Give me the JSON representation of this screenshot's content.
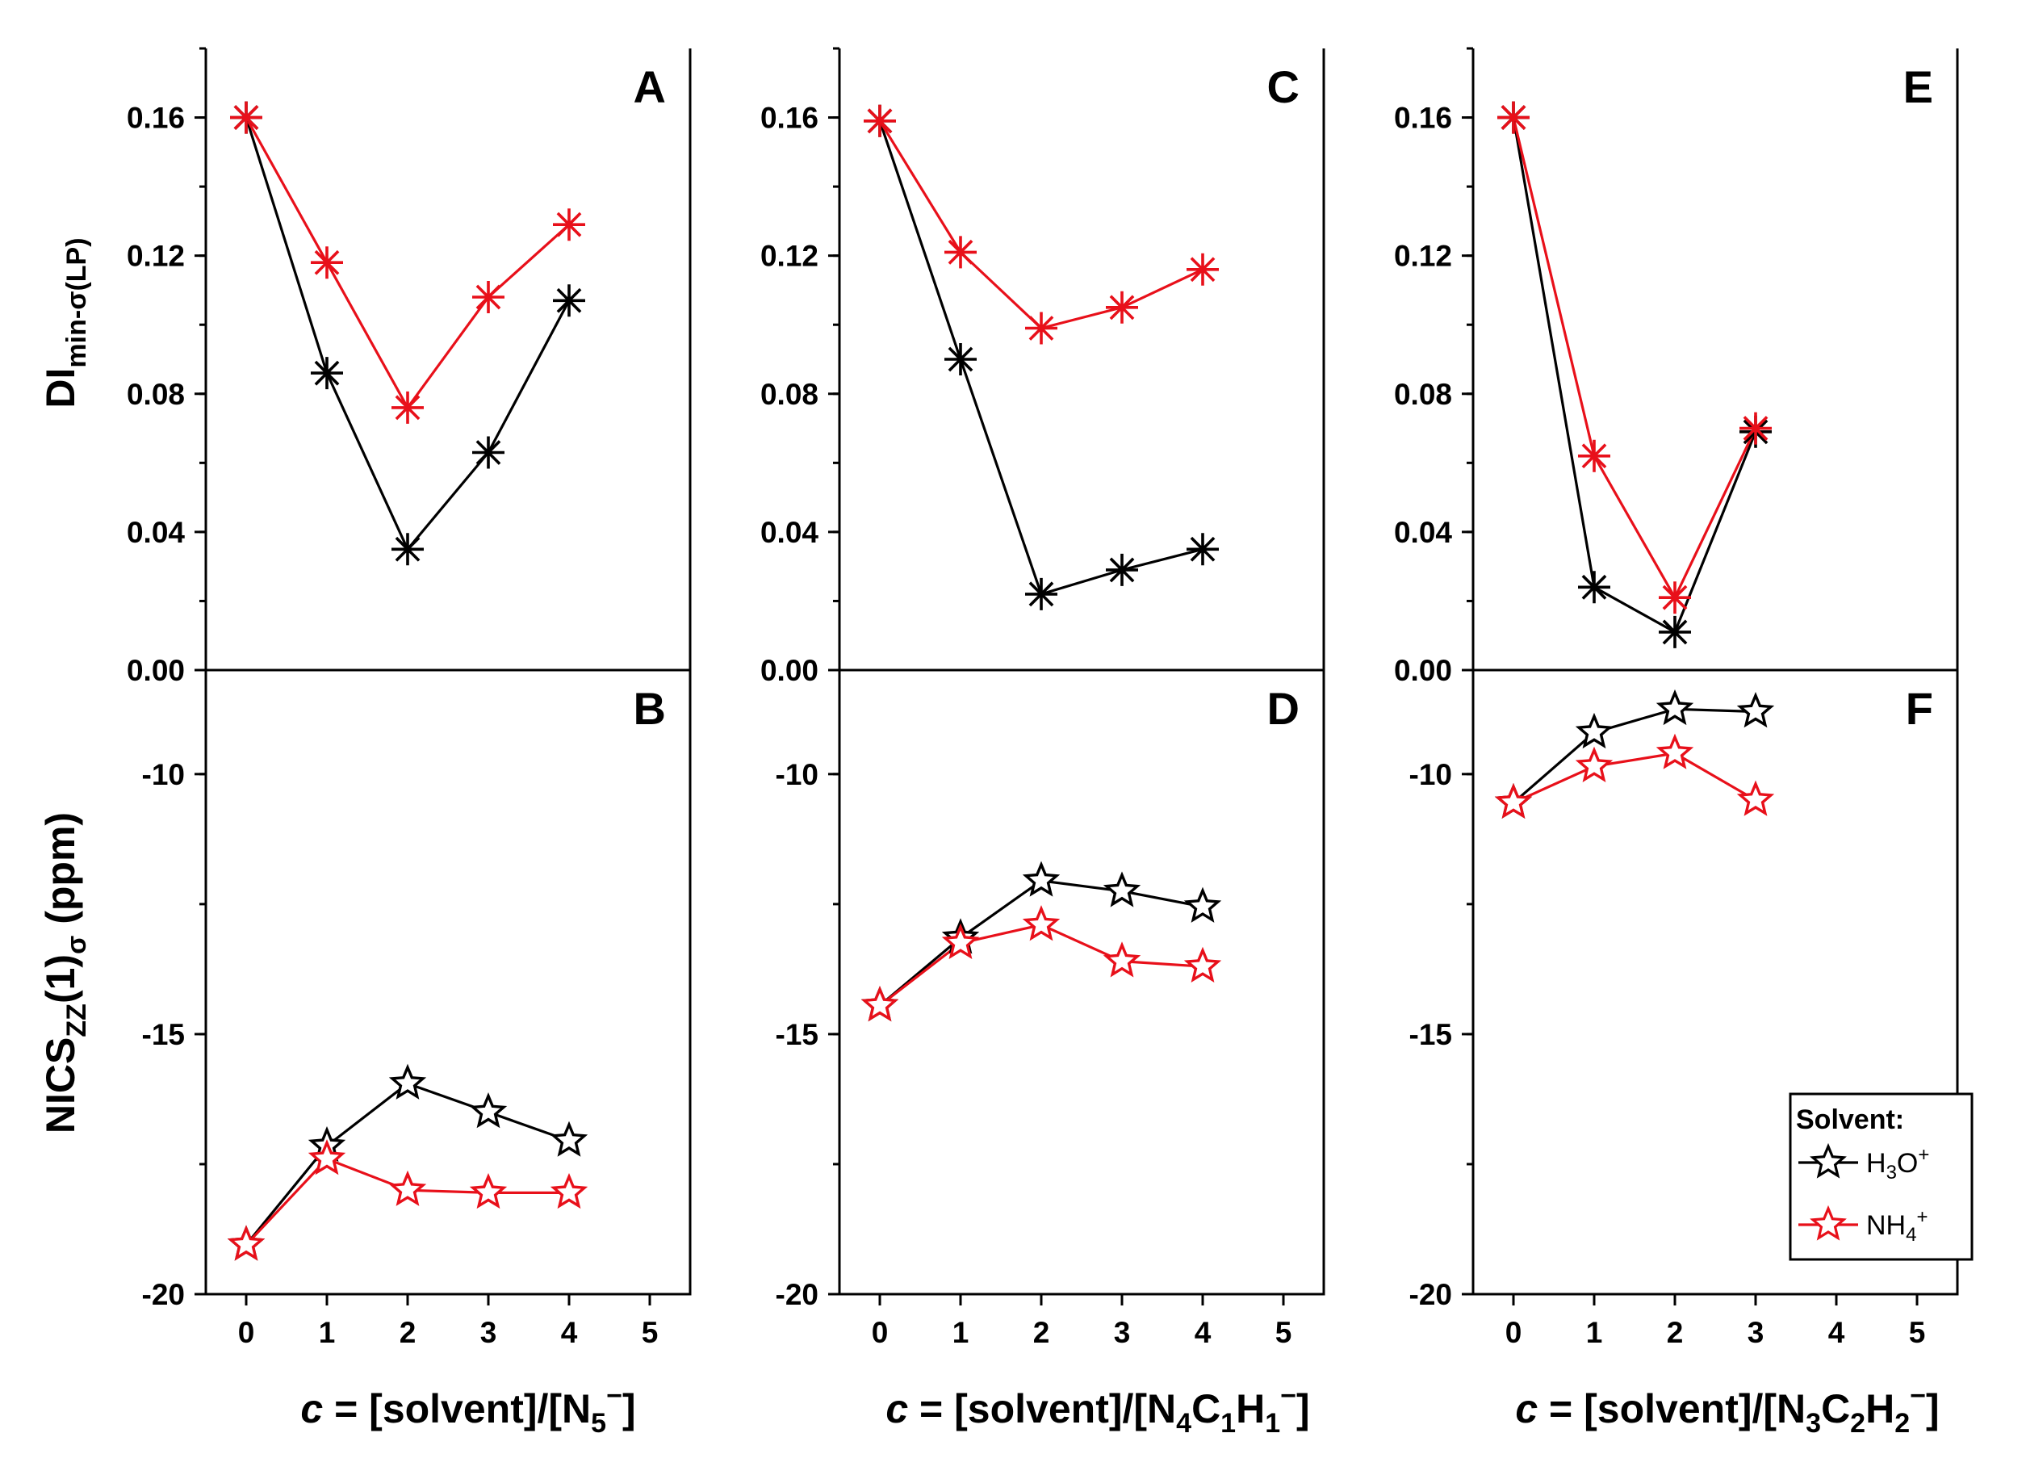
{
  "colors": {
    "h3o": "#000000",
    "nh4": "#e8101a"
  },
  "y_titles": {
    "top": {
      "main": "DI",
      "sub": "min-σ(LP)"
    },
    "bottom": {
      "main": "NICS",
      "sub": "ZZ",
      "mid": "(1)",
      "sub2": "σ",
      "tail": " (ppm)"
    }
  },
  "x_titles": [
    {
      "lead": "c",
      "body": " = [solvent]/[N",
      "s1": "5",
      "sup": "−",
      "end": "]"
    },
    {
      "lead": "c",
      "body": " = [solvent]/[N",
      "s1": "4",
      "m1": "C",
      "s2": "1",
      "m2": "H",
      "s3": "1",
      "sup": "−",
      "end": "]"
    },
    {
      "lead": "c",
      "body": " = [solvent]/[N",
      "s1": "3",
      "m1": "C",
      "s2": "2",
      "m2": "H",
      "s3": "2",
      "sup": "−",
      "end": "]"
    }
  ],
  "legend": {
    "title": "Solvent:",
    "h3o": {
      "a": "H",
      "s": "3",
      "b": "O",
      "sup": "+"
    },
    "nh4": {
      "a": "NH",
      "s": "4",
      "sup": "+"
    }
  },
  "chart_data": [
    {
      "panel": "A",
      "type": "line",
      "marker": "asterisk",
      "xlim": [
        -0.5,
        5.5
      ],
      "ylim": [
        0,
        0.18
      ],
      "xticks": [
        "0",
        "1",
        "2",
        "3",
        "4",
        "5"
      ],
      "yticks": [
        "0.00",
        "0.04",
        "0.08",
        "0.12",
        "0.16"
      ],
      "series": [
        {
          "name": "H3O+",
          "x": [
            0,
            1,
            2,
            3,
            4
          ],
          "y": [
            0.16,
            0.086,
            0.035,
            0.063,
            0.107
          ]
        },
        {
          "name": "NH4+",
          "x": [
            0,
            1,
            2,
            3,
            4
          ],
          "y": [
            0.16,
            0.118,
            0.076,
            0.108,
            0.129
          ]
        }
      ]
    },
    {
      "panel": "C",
      "type": "line",
      "marker": "asterisk",
      "xlim": [
        -0.5,
        5.5
      ],
      "ylim": [
        0,
        0.18
      ],
      "xticks": [
        "0",
        "1",
        "2",
        "3",
        "4",
        "5"
      ],
      "yticks": [
        "0.00",
        "0.04",
        "0.08",
        "0.12",
        "0.16"
      ],
      "series": [
        {
          "name": "H3O+",
          "x": [
            0,
            1,
            2,
            3,
            4
          ],
          "y": [
            0.159,
            0.09,
            0.022,
            0.029,
            0.035
          ]
        },
        {
          "name": "NH4+",
          "x": [
            0,
            1,
            2,
            3,
            4
          ],
          "y": [
            0.159,
            0.121,
            0.099,
            0.105,
            0.116
          ]
        }
      ]
    },
    {
      "panel": "E",
      "type": "line",
      "marker": "asterisk",
      "xlim": [
        -0.5,
        5.5
      ],
      "ylim": [
        0,
        0.18
      ],
      "xticks": [
        "0",
        "1",
        "2",
        "3",
        "4",
        "5"
      ],
      "yticks": [
        "0.00",
        "0.04",
        "0.08",
        "0.12",
        "0.16"
      ],
      "series": [
        {
          "name": "H3O+",
          "x": [
            0,
            1,
            2,
            3
          ],
          "y": [
            0.16,
            0.024,
            0.011,
            0.069
          ]
        },
        {
          "name": "NH4+",
          "x": [
            0,
            1,
            2,
            3
          ],
          "y": [
            0.16,
            0.062,
            0.021,
            0.07
          ]
        }
      ]
    },
    {
      "panel": "B",
      "type": "line",
      "marker": "star",
      "xlim": [
        -0.5,
        5.5
      ],
      "ylim": [
        -20,
        -8
      ],
      "xticks": [
        "0",
        "1",
        "2",
        "3",
        "4",
        "5"
      ],
      "yticks": [
        "-20",
        "-15",
        "-10"
      ],
      "series": [
        {
          "name": "H3O+",
          "x": [
            0,
            1,
            2,
            3,
            4
          ],
          "y": [
            -19.05,
            -17.15,
            -15.95,
            -16.5,
            -17.05
          ]
        },
        {
          "name": "NH4+",
          "x": [
            0,
            1,
            2,
            3,
            4
          ],
          "y": [
            -19.05,
            -17.4,
            -18.0,
            -18.05,
            -18.05
          ]
        }
      ]
    },
    {
      "panel": "D",
      "type": "line",
      "marker": "star",
      "xlim": [
        -0.5,
        5.5
      ],
      "ylim": [
        -20,
        -8
      ],
      "xticks": [
        "0",
        "1",
        "2",
        "3",
        "4",
        "5"
      ],
      "yticks": [
        "-20",
        "-15",
        "-10"
      ],
      "series": [
        {
          "name": "H3O+",
          "x": [
            0,
            1,
            2,
            3,
            4
          ],
          "y": [
            -14.45,
            -13.15,
            -12.05,
            -12.25,
            -12.55
          ]
        },
        {
          "name": "NH4+",
          "x": [
            0,
            1,
            2,
            3,
            4
          ],
          "y": [
            -14.45,
            -13.25,
            -12.9,
            -13.6,
            -13.7
          ]
        }
      ]
    },
    {
      "panel": "F",
      "type": "line",
      "marker": "star",
      "xlim": [
        -0.5,
        5.5
      ],
      "ylim": [
        -20,
        -8
      ],
      "xticks": [
        "0",
        "1",
        "2",
        "3",
        "4",
        "5"
      ],
      "yticks": [
        "-20",
        "-15",
        "-10"
      ],
      "series": [
        {
          "name": "H3O+",
          "x": [
            0,
            1,
            2,
            3
          ],
          "y": [
            -10.55,
            -9.2,
            -8.75,
            -8.8
          ]
        },
        {
          "name": "NH4+",
          "x": [
            0,
            1,
            2,
            3
          ],
          "y": [
            -10.55,
            -9.85,
            -9.6,
            -10.5
          ]
        }
      ]
    }
  ]
}
